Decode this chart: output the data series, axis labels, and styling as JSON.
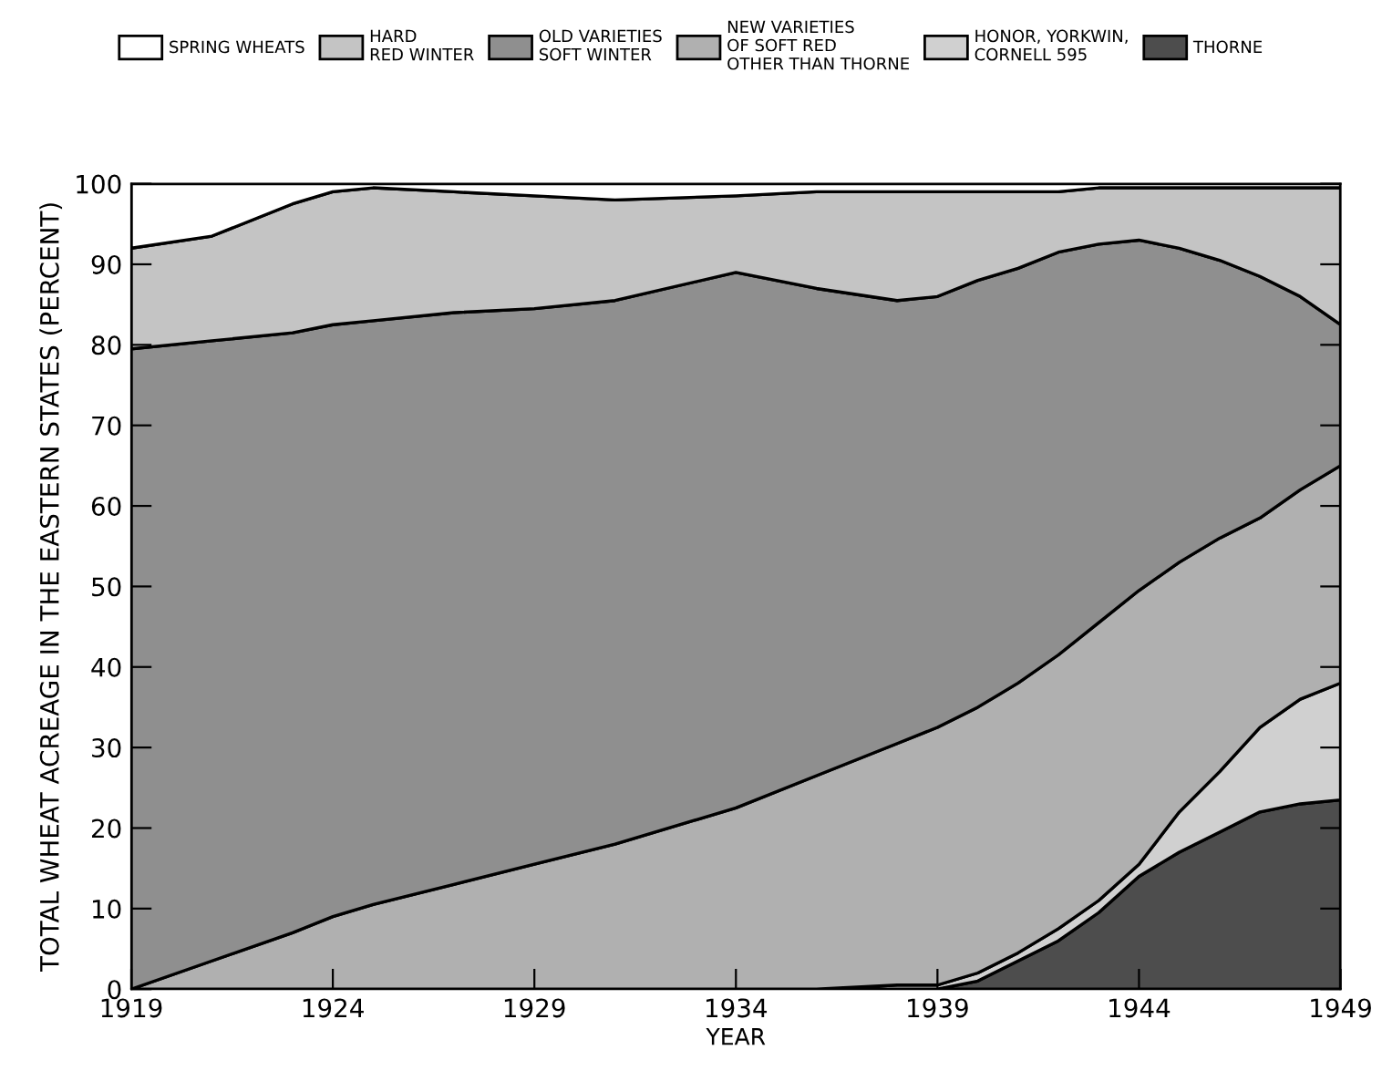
{
  "chart_data": {
    "type": "area",
    "stacked": true,
    "legend": "top",
    "grid": false,
    "xlabel": "YEAR",
    "ylabel": "TOTAL WHEAT ACREAGE IN THE EASTERN STATES (PERCENT)",
    "x": [
      1919,
      1921,
      1923,
      1924,
      1925,
      1927,
      1929,
      1931,
      1934,
      1936,
      1938,
      1939,
      1940,
      1941,
      1942,
      1943,
      1944,
      1945,
      1946,
      1947,
      1948,
      1949
    ],
    "xlim": [
      1919,
      1949
    ],
    "xticks": [
      1919,
      1924,
      1929,
      1934,
      1939,
      1944,
      1949
    ],
    "ylim": [
      0,
      100
    ],
    "yticks": [
      0,
      10,
      20,
      30,
      40,
      50,
      60,
      70,
      80,
      90,
      100
    ],
    "series": [
      {
        "name": "THORNE",
        "color": "#4d4d4d",
        "values": [
          0,
          0,
          0,
          0,
          0,
          0,
          0,
          0,
          0,
          0,
          0,
          0,
          1,
          3.5,
          6,
          9.5,
          14,
          17,
          19.5,
          22,
          23,
          23.5
        ]
      },
      {
        "name": "HONOR, YORKWIN,\nCORNELL 595",
        "color": "#d0d0d0",
        "values": [
          0,
          0,
          0,
          0,
          0,
          0,
          0,
          0,
          0,
          0,
          0.5,
          0.5,
          1,
          1,
          1.5,
          1.5,
          1.5,
          5,
          7.5,
          10.5,
          13,
          14.5
        ]
      },
      {
        "name": "NEW VARIETIES\nOF SOFT RED\nOTHER THAN THORNE",
        "color": "#b0b0b0",
        "values": [
          0,
          3.5,
          7,
          9,
          10.5,
          13,
          15.5,
          18,
          22.5,
          26.5,
          30,
          32,
          33,
          33.5,
          34,
          34.5,
          34,
          31,
          29,
          26,
          26,
          27
        ]
      },
      {
        "name": "OLD VARIETIES\nSOFT WINTER",
        "color": "#8f8f8f",
        "values": [
          79.5,
          77,
          74.5,
          73.5,
          72.5,
          71,
          69,
          67.5,
          66.5,
          60.5,
          55,
          53.5,
          53,
          51.5,
          50,
          47,
          43.5,
          39,
          34.5,
          30,
          24,
          17.5
        ]
      },
      {
        "name": "HARD\nRED WINTER",
        "color": "#c4c4c4",
        "values": [
          12.5,
          13,
          16,
          16.5,
          16.5,
          15,
          14,
          12.5,
          9.5,
          12,
          13.5,
          13,
          11,
          9.5,
          7.5,
          7,
          6.5,
          7.5,
          9,
          11,
          13.5,
          17
        ]
      },
      {
        "name": "SPRING WHEATS",
        "color": "#ffffff",
        "values": [
          8,
          6.5,
          2.5,
          1,
          0.5,
          1,
          1.5,
          2,
          1.5,
          1,
          1,
          1,
          1,
          1,
          1,
          0.5,
          0.5,
          0.5,
          0.5,
          0.5,
          0.5,
          0.5
        ]
      }
    ]
  }
}
